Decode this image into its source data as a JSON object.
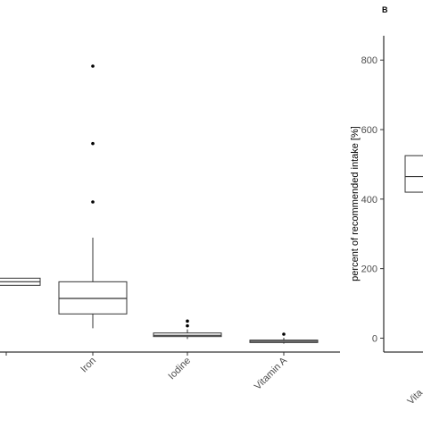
{
  "chart_data": [
    {
      "panel": "",
      "type": "boxplot",
      "title": "",
      "xlabel": "",
      "ylabel": "",
      "categories": [
        "",
        "Iron",
        "Iodine",
        "Vitamin A"
      ],
      "boxes": [
        {
          "q1": 48,
          "median": 51,
          "q3": 54,
          "whisker_low": 48,
          "whisker_high": 54,
          "outliers": []
        },
        {
          "q1": 24,
          "median": 37,
          "q3": 51,
          "whisker_low": 12,
          "whisker_high": 88,
          "outliers": [
            118,
            167,
            232
          ]
        },
        {
          "q1": 5,
          "median": 6,
          "q3": 8,
          "whisker_low": 3,
          "whisker_high": 11,
          "outliers": [
            14,
            18
          ]
        },
        {
          "q1": 0,
          "median": 1,
          "q3": 2,
          "whisker_low": -1,
          "whisker_high": 4,
          "outliers": [
            7
          ]
        }
      ],
      "ylim": [
        -8,
        265
      ],
      "grid": false,
      "legend": "none"
    },
    {
      "panel": "B",
      "type": "boxplot",
      "title": "",
      "xlabel": "",
      "ylabel": "percent of recommended intake [%]",
      "categories": [
        "Vita"
      ],
      "yticks": [
        0,
        200,
        400,
        600,
        800
      ],
      "boxes": [
        {
          "q1": 420,
          "median": 465,
          "q3": 525,
          "whisker_low": 420,
          "whisker_high": 525,
          "outliers": []
        }
      ],
      "ylim": [
        -40,
        870
      ],
      "grid": false,
      "legend": "none"
    }
  ]
}
